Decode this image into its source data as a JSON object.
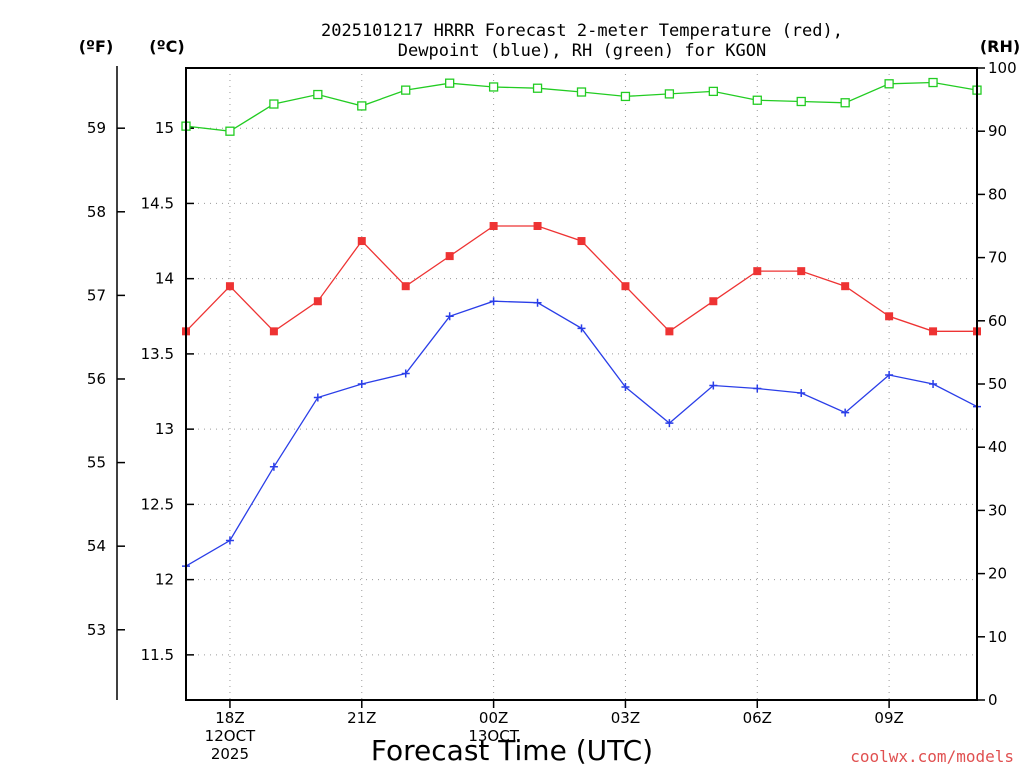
{
  "chart_data": {
    "type": "line",
    "title_line1": "2025101217 HRRR Forecast 2-meter Temperature (red),",
    "title_line2": "Dewpoint (blue), RH (green) for KGON",
    "xlabel": "Forecast Time (UTC)",
    "credit": "coolwx.com/models",
    "units": {
      "fahrenheit": "(ºF)",
      "celsius": "(ºC)",
      "rh": "(RH)"
    },
    "x_hours": [
      0,
      1,
      2,
      3,
      4,
      5,
      6,
      7,
      8,
      9,
      10,
      11,
      12,
      13,
      14,
      15,
      16,
      17,
      18
    ],
    "x_range": [
      0,
      18
    ],
    "x_ticks": [
      {
        "hour": 1,
        "label": "18Z",
        "sub1": "12OCT",
        "sub2": "2025"
      },
      {
        "hour": 4,
        "label": "21Z",
        "sub1": "",
        "sub2": ""
      },
      {
        "hour": 7,
        "label": "00Z",
        "sub1": "13OCT",
        "sub2": ""
      },
      {
        "hour": 10,
        "label": "03Z",
        "sub1": "",
        "sub2": ""
      },
      {
        "hour": 13,
        "label": "06Z",
        "sub1": "",
        "sub2": ""
      },
      {
        "hour": 16,
        "label": "09Z",
        "sub1": "",
        "sub2": ""
      }
    ],
    "y_celsius": {
      "range": [
        11.2,
        15.4
      ],
      "ticks": [
        "11.5",
        "12",
        "12.5",
        "13",
        "13.5",
        "14",
        "14.5",
        "15"
      ]
    },
    "y_fahrenheit": {
      "ticks": [
        "53",
        "54",
        "55",
        "56",
        "57",
        "58",
        "59"
      ]
    },
    "y_rh": {
      "range": [
        0,
        100
      ],
      "ticks": [
        "0",
        "10",
        "20",
        "30",
        "40",
        "50",
        "60",
        "70",
        "80",
        "90",
        "100"
      ]
    },
    "series": [
      {
        "name": "Temperature",
        "axis": "celsius",
        "color": "#ee3333",
        "marker": "filled-square",
        "values": [
          13.65,
          13.95,
          13.65,
          13.85,
          14.25,
          13.95,
          14.15,
          14.35,
          14.35,
          14.25,
          13.95,
          13.65,
          13.85,
          14.05,
          14.05,
          13.95,
          13.75,
          13.65,
          13.65
        ]
      },
      {
        "name": "Dewpoint",
        "axis": "celsius",
        "color": "#2a3ee8",
        "marker": "plus",
        "values": [
          12.09,
          12.26,
          12.75,
          13.21,
          13.3,
          13.37,
          13.75,
          13.85,
          13.84,
          13.67,
          13.28,
          13.04,
          13.29,
          13.27,
          13.24,
          13.11,
          13.36,
          13.3,
          13.15
        ]
      },
      {
        "name": "RH",
        "axis": "rh",
        "color": "#22cc22",
        "marker": "open-square",
        "values": [
          90.8,
          90.0,
          94.3,
          95.8,
          94.0,
          96.5,
          97.6,
          97.0,
          96.8,
          96.2,
          95.5,
          95.9,
          96.3,
          94.9,
          94.7,
          94.5,
          97.5,
          97.7,
          96.5
        ]
      }
    ]
  }
}
